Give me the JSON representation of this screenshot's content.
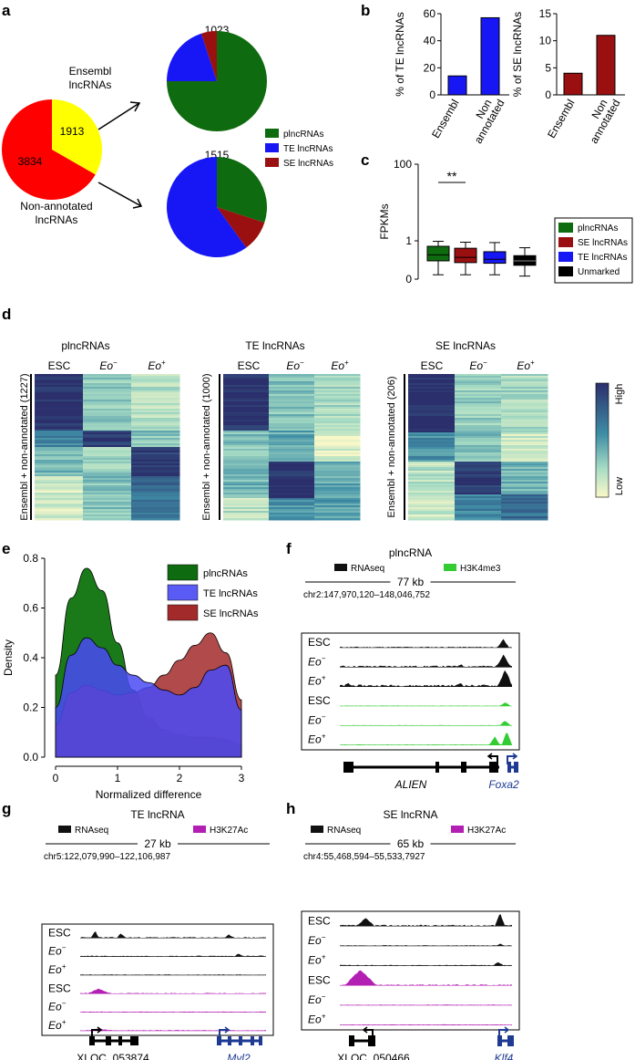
{
  "colors": {
    "green": "#0f6b0f",
    "blue": "#1717f5",
    "red": "#9a0f0f",
    "black": "#000000",
    "pieRed": "#ff0000",
    "pieYellow": "#ffff00",
    "rnaseq": "#111111",
    "h3k4me3": "#33cc33",
    "h3k27ac": "#b31fb3",
    "geneBlue": "#1f3a93",
    "hmLow": "#fbf8c8",
    "hmHigh": "#2b2f6b"
  },
  "panel_labels": {
    "a": "a",
    "b": "b",
    "c": "c",
    "d": "d",
    "e": "e",
    "f": "f",
    "g": "g",
    "h": "h"
  },
  "panel_a": {
    "ensembl_label_1": "Ensembl",
    "ensembl_label_2": "lncRNAs",
    "nonannot_label_1": "Non-annotated",
    "nonannot_label_2": "lncRNAs",
    "big_pie": [
      {
        "name": "Ensembl lncRNAs",
        "value": 1913,
        "label": "1913"
      },
      {
        "name": "Non-annotated lncRNAs",
        "value": 3834,
        "label": "3834"
      }
    ],
    "top_pie": {
      "total": "1023",
      "fractions": [
        0.75,
        0.2,
        0.05
      ]
    },
    "bottom_pie": {
      "total": "1515",
      "fractions": [
        0.3,
        0.1,
        0.6
      ]
    },
    "legend": [
      "plncRNAs",
      "TE lncRNAs",
      "SE lncRNAs"
    ]
  },
  "chart_data": [
    {
      "id": "b_left",
      "type": "bar",
      "categories": [
        "Ensembl",
        "Non annotated"
      ],
      "values": [
        14,
        57
      ],
      "ylabel": "% of TE lncRNAs",
      "ylim": [
        0,
        60
      ],
      "yticks": [
        "0",
        "20",
        "40",
        "60"
      ],
      "xtick_labels": [
        [
          "Ensembl"
        ],
        [
          "Non",
          "annotated"
        ]
      ]
    },
    {
      "id": "b_right",
      "type": "bar",
      "categories": [
        "Ensembl",
        "Non annotated"
      ],
      "values": [
        4,
        11
      ],
      "ylabel": "% of SE lncRNAs",
      "ylim": [
        0,
        15
      ],
      "yticks": [
        "0",
        "5",
        "10",
        "15"
      ],
      "xtick_labels": [
        [
          "Ensembl"
        ],
        [
          "Non",
          "annotated"
        ]
      ]
    },
    {
      "id": "c",
      "type": "box",
      "ylabel": "FPKMs",
      "scale": "log",
      "yticks": [
        "100",
        "1",
        "0"
      ],
      "significance": "**",
      "series": [
        {
          "name": "plncRNAs",
          "whislo": 0.13,
          "q1": 0.3,
          "median": 0.43,
          "q3": 0.72,
          "whishi": 0.97
        },
        {
          "name": "SE lncRNAs",
          "whislo": 0.13,
          "q1": 0.27,
          "median": 0.37,
          "q3": 0.64,
          "whishi": 0.92
        },
        {
          "name": "TE lncRNAs",
          "whislo": 0.13,
          "q1": 0.26,
          "median": 0.33,
          "q3": 0.52,
          "whishi": 0.9
        },
        {
          "name": "Unmarked",
          "whislo": 0.12,
          "q1": 0.23,
          "median": 0.3,
          "q3": 0.41,
          "whishi": 0.66
        }
      ],
      "legend": [
        "plncRNAs",
        "SE lncRNAs",
        "TE lncRNAs",
        "Unmarked"
      ]
    },
    {
      "id": "e",
      "type": "area",
      "xlabel": "Normalized difference",
      "ylabel": "Density",
      "xlim": [
        0,
        3
      ],
      "ylim": [
        0,
        0.8
      ],
      "xticks": [
        "0",
        "1",
        "2",
        "3"
      ],
      "yticks": [
        "0.0",
        "0.2",
        "0.4",
        "0.6",
        "0.8"
      ],
      "x": [
        0,
        0.25,
        0.5,
        0.75,
        1,
        1.25,
        1.5,
        1.75,
        2,
        2.25,
        2.5,
        2.75,
        3
      ],
      "series": [
        {
          "name": "plncRNAs",
          "values": [
            0.33,
            0.64,
            0.76,
            0.67,
            0.46,
            0.27,
            0.16,
            0.11,
            0.09,
            0.08,
            0.08,
            0.07,
            0.05
          ]
        },
        {
          "name": "TE lncRNAs",
          "values": [
            0.2,
            0.41,
            0.48,
            0.44,
            0.37,
            0.33,
            0.3,
            0.27,
            0.25,
            0.28,
            0.35,
            0.37,
            0.19
          ]
        },
        {
          "name": "SE lncRNAs",
          "values": [
            0.13,
            0.26,
            0.29,
            0.27,
            0.25,
            0.26,
            0.28,
            0.33,
            0.39,
            0.45,
            0.5,
            0.42,
            0.23
          ]
        }
      ],
      "legend": [
        "plncRNAs",
        "TE lncRNAs",
        "SE lncRNAs"
      ]
    }
  ],
  "panel_d": {
    "scale_high": "High",
    "scale_low": "Low",
    "col_esc": "ESC",
    "col_eo": "Eo",
    "sup_minus": "−",
    "sup_plus": "+",
    "heatmaps": [
      {
        "title": "plncRNAs",
        "ylabel": "Ensembl + non-annotated (1227)"
      },
      {
        "title": "TE lncRNAs",
        "ylabel": "Ensembl + non-annotated (1000)"
      },
      {
        "title": "SE lncRNAs",
        "ylabel": "Ensembl + non-annotated (206)"
      }
    ]
  },
  "tracks": {
    "f": {
      "title": "plncRNA",
      "legend_rna": "RNAseq",
      "legend_mark": "H3K4me3",
      "scale": "77 kb",
      "coords": "chr2:147,970,120–148,046,752",
      "gene1": "ALIEN",
      "gene2": "Foxa2"
    },
    "g": {
      "title": "TE lncRNA",
      "legend_rna": "RNAseq",
      "legend_mark": "H3K27Ac",
      "scale": "27 kb",
      "coords": "chr5:122,079,990–122,106,987",
      "gene1": "XLOC_053874",
      "gene2": "Myl2"
    },
    "h": {
      "title": "SE lncRNA",
      "legend_rna": "RNAseq",
      "legend_mark": "H3K27Ac",
      "scale": "65 kb",
      "coords": "chr4:55,468,594–55,533,7927",
      "gene1": "XLOC_050466",
      "gene2": "Klf4"
    }
  }
}
